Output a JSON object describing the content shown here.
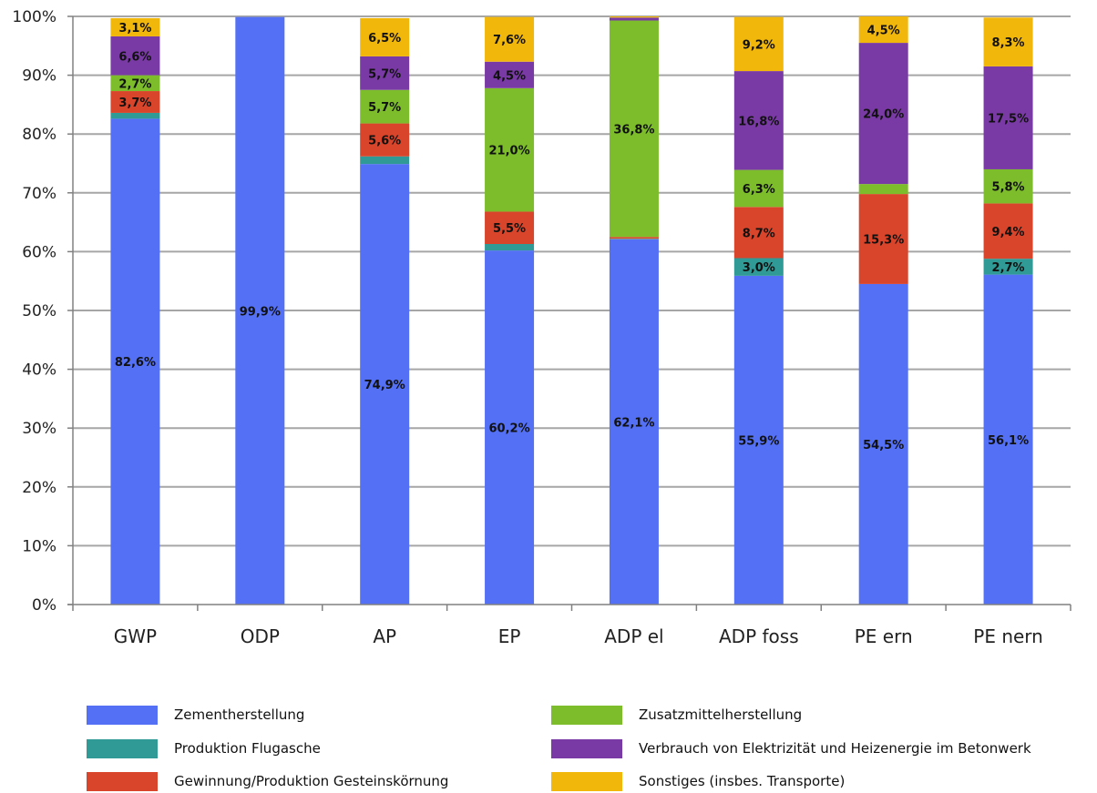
{
  "chart_data": {
    "type": "bar",
    "stacked": true,
    "title": "",
    "xlabel": "",
    "ylabel": "",
    "ylim": [
      0,
      100
    ],
    "y_tick_labels": [
      "0%",
      "10%",
      "20%",
      "30%",
      "40%",
      "50%",
      "60%",
      "70%",
      "80%",
      "90%",
      "100%"
    ],
    "grid": "horizontal",
    "legend_position": "bottom",
    "categories": [
      "GWP",
      "ODP",
      "AP",
      "EP",
      "ADP el",
      "ADP foss",
      "PE ern",
      "PE nern"
    ],
    "series": [
      {
        "name": "Zementherstellung",
        "color": "#5470f5",
        "values": [
          82.6,
          99.9,
          74.9,
          60.2,
          62.1,
          55.9,
          54.5,
          56.1
        ],
        "labels": [
          "82,6%",
          "99,9%",
          "74,9%",
          "60,2%",
          "62,1%",
          "55,9%",
          "54,5%",
          "56,1%"
        ]
      },
      {
        "name": "Produktion Flugasche",
        "color": "#2f9a96",
        "values": [
          1.0,
          0.0,
          1.3,
          1.1,
          0.1,
          3.0,
          0.0,
          2.7
        ],
        "labels": [
          "",
          "",
          "",
          "",
          "",
          "3,0%",
          "",
          "2,7%"
        ]
      },
      {
        "name": "Gewinnung/Produktion Gesteinskörnung",
        "color": "#d9452b",
        "values": [
          3.7,
          0.0,
          5.6,
          5.5,
          0.3,
          8.7,
          15.3,
          9.4
        ],
        "labels": [
          "3,7%",
          "",
          "5,6%",
          "5,5%",
          "",
          "8,7%",
          "15,3%",
          "9,4%"
        ]
      },
      {
        "name": "Zusatzmittelherstellung",
        "color": "#7dbd2c",
        "values": [
          2.7,
          0.0,
          5.7,
          21.0,
          36.8,
          6.3,
          1.7,
          5.8
        ],
        "labels": [
          "2,7%",
          "",
          "5,7%",
          "21,0%",
          "36,8%",
          "6,3%",
          "",
          "5,8%"
        ]
      },
      {
        "name": "Verbrauch von Elektrizität und Heizenergie im Betonwerk",
        "color": "#7a3aa6",
        "values": [
          6.6,
          0.0,
          5.7,
          4.5,
          0.5,
          16.8,
          24.0,
          17.5
        ],
        "labels": [
          "6,6%",
          "",
          "5,7%",
          "4,5%",
          "",
          "16,8%",
          "24,0%",
          "17,5%"
        ]
      },
      {
        "name": "Sonstiges (insbes. Transporte)",
        "color": "#f2b70b",
        "values": [
          3.1,
          0.0,
          6.5,
          7.6,
          0.2,
          9.2,
          4.5,
          8.3
        ],
        "labels": [
          "3,1%",
          "",
          "6,5%",
          "7,6%",
          "",
          "9,2%",
          "4,5%",
          "8,3%"
        ]
      }
    ]
  }
}
